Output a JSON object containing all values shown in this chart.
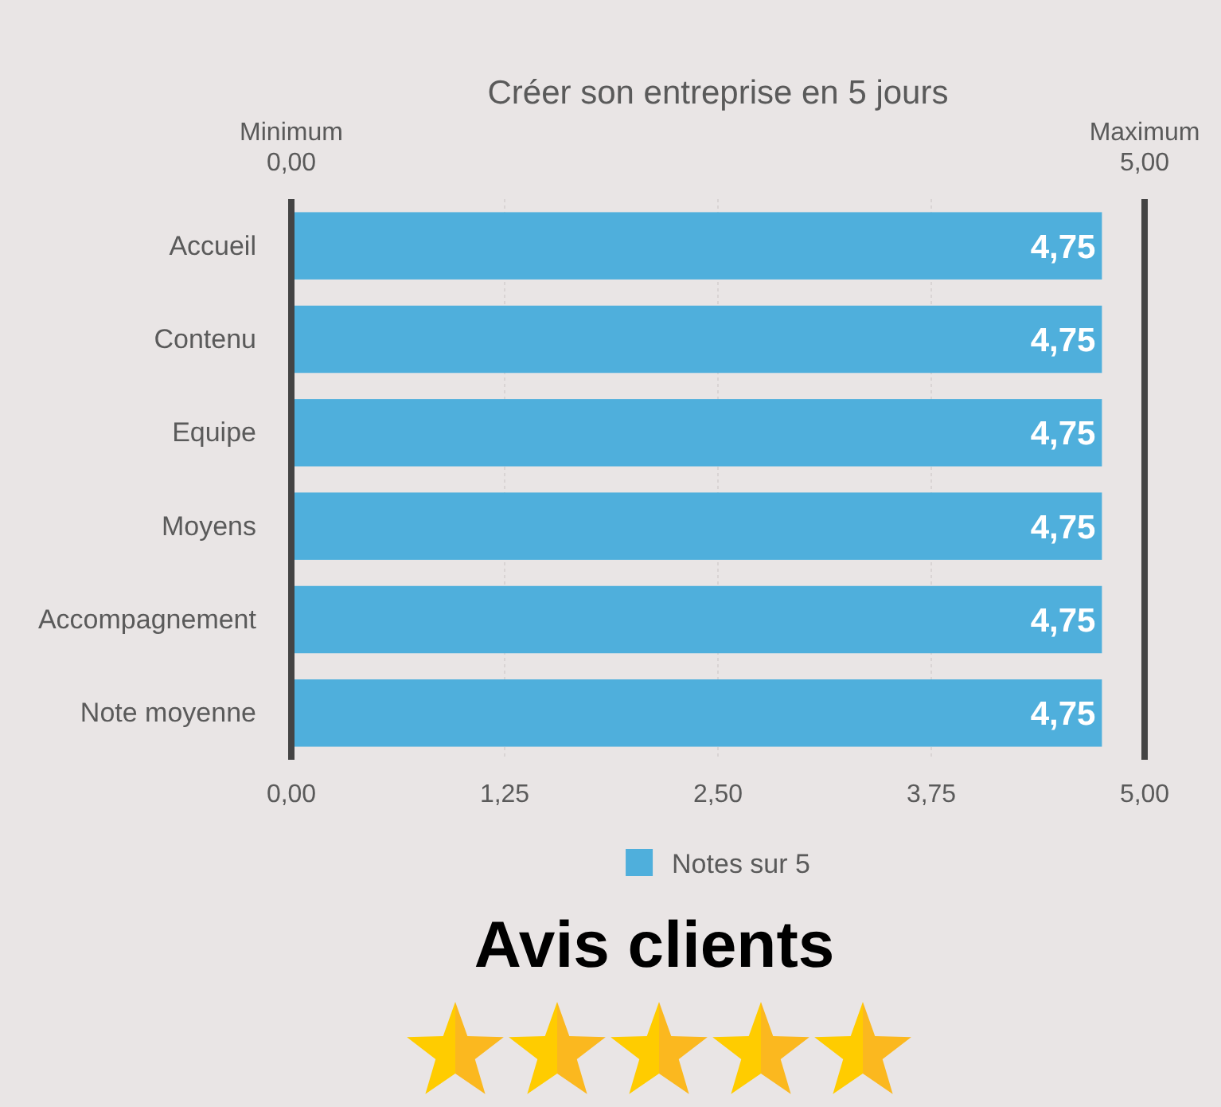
{
  "chart_data": {
    "type": "bar",
    "orientation": "horizontal",
    "title": "Créer son entreprise en 5 jours",
    "categories": [
      "Accueil",
      "Contenu",
      "Equipe",
      "Moyens",
      "Accompagnement",
      "Note moyenne"
    ],
    "series": [
      {
        "name": "Notes sur 5",
        "color": "#4fafdc",
        "values": [
          4.75,
          4.75,
          4.75,
          4.75,
          4.75,
          4.75
        ],
        "value_labels": [
          "4,75",
          "4,75",
          "4,75",
          "4,75",
          "4,75",
          "4,75"
        ]
      }
    ],
    "xlim": [
      0,
      5
    ],
    "xticks": [
      {
        "value": 0,
        "label": "0,00"
      },
      {
        "value": 1.25,
        "label": "1,25"
      },
      {
        "value": 2.5,
        "label": "2,50"
      },
      {
        "value": 3.75,
        "label": "3,75"
      },
      {
        "value": 5,
        "label": "5,00"
      }
    ],
    "x2lim": [
      0,
      5
    ],
    "x2ticks": [
      {
        "value": 0,
        "label": "0,00"
      },
      {
        "value": 5,
        "label": "5,00"
      }
    ],
    "ref_lines": [
      {
        "axis": "x",
        "value": 5,
        "label": "Maximum",
        "color": "#444444"
      }
    ],
    "grid": "x",
    "legend": "bottom",
    "annotations": [
      "Minimum",
      "Avis clients"
    ]
  }
}
